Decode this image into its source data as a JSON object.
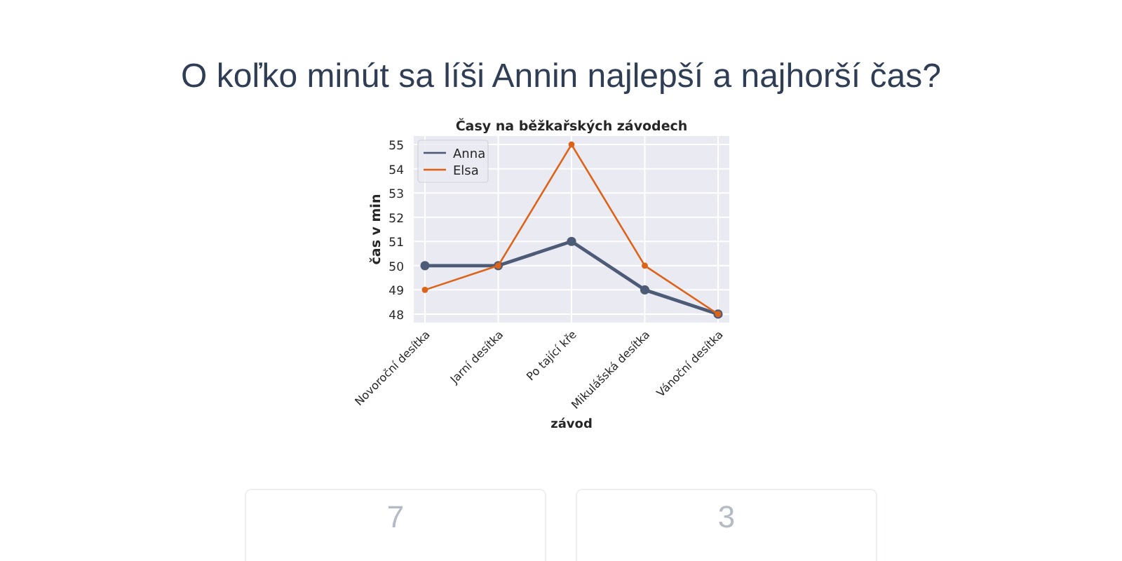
{
  "chart_data": {
    "type": "line",
    "title": "Časy na běžkařských závodech",
    "xlabel": "závod",
    "ylabel": "čas v min",
    "categories": [
      "Novoroční desítka",
      "Jarní desítka",
      "Po tající kře",
      "Mikulášská desítka",
      "Vánoční desítka"
    ],
    "series": [
      {
        "name": "Anna",
        "color": "#4e5b77",
        "values": [
          50,
          50,
          51,
          49,
          48
        ]
      },
      {
        "name": "Elsa",
        "color": "#dd6318",
        "values": [
          49,
          50,
          55,
          50,
          48
        ]
      }
    ],
    "ylim": [
      47.65,
      55.35
    ],
    "yticks": [
      48,
      49,
      50,
      51,
      52,
      53,
      54,
      55
    ],
    "grid": true,
    "legend": "top left",
    "marker": "circle",
    "line_style": "solid",
    "annotations": [
      "O koľko minút sa líši Annin najlepší a najhorší čas?",
      "7",
      "3"
    ]
  }
}
